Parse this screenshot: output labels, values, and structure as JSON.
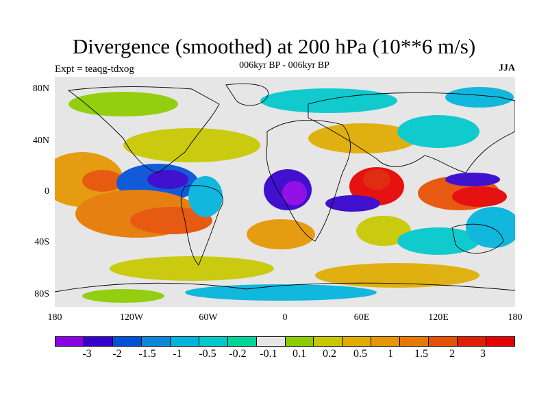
{
  "title": "Divergence (smoothed) at 200 hPa (10**6 m/s)",
  "subtitle": "006kyr BP - 006kyr BP",
  "left_label": "Expt = teaqg-tdxog",
  "right_label": "JJA",
  "map": {
    "projection": "cylindrical equidistant",
    "background_color": "#e6e6e6",
    "lat_ticks": [
      "80N",
      "40N",
      "0",
      "40S",
      "80S"
    ],
    "lon_ticks": [
      "180",
      "120W",
      "60W",
      "0",
      "60E",
      "120E",
      "180"
    ]
  },
  "colorbar": {
    "colors": [
      "#8a00e6",
      "#3300cc",
      "#0050d8",
      "#0a87dc",
      "#00b4dc",
      "#00c8cc",
      "#00d496",
      "#e6e6e6",
      "#8ccd00",
      "#c8c800",
      "#e0ac00",
      "#e69600",
      "#e67800",
      "#e65000",
      "#e01e00",
      "#e60000"
    ],
    "labels": [
      "-3",
      "-2",
      "-1.5",
      "-1",
      "-0.5",
      "-0.2",
      "-0.1",
      "0.1",
      "0.2",
      "0.5",
      "1",
      "1.5",
      "2",
      "3"
    ]
  }
}
